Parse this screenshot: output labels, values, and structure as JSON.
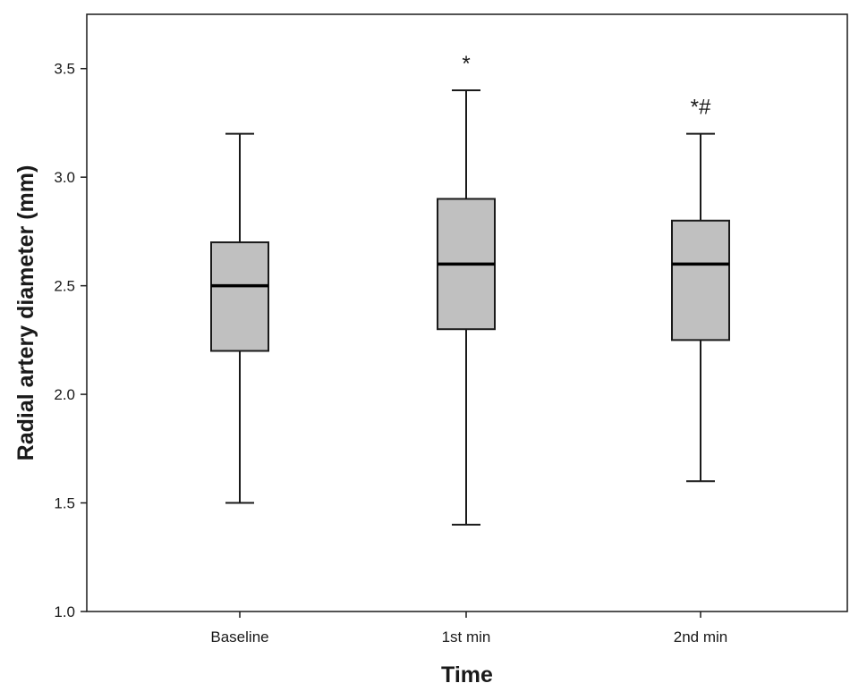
{
  "chart_data": {
    "type": "box",
    "title": "",
    "xlabel": "Time",
    "ylabel": "Radial artery diameter (mm)",
    "ylim": [
      1.0,
      3.75
    ],
    "yticks": [
      1.0,
      1.5,
      2.0,
      2.5,
      3.0,
      3.5
    ],
    "ytick_labels": [
      "1.0",
      "1.5",
      "2.0",
      "2.5",
      "3.0",
      "3.5"
    ],
    "categories": [
      "Baseline",
      "1st min",
      "2nd min"
    ],
    "boxes": [
      {
        "category": "Baseline",
        "min": 1.5,
        "q1": 2.2,
        "median": 2.5,
        "q3": 2.7,
        "max": 3.2,
        "annotation": ""
      },
      {
        "category": "1st min",
        "min": 1.4,
        "q1": 2.3,
        "median": 2.6,
        "q3": 2.9,
        "max": 3.4,
        "annotation": "*"
      },
      {
        "category": "2nd min",
        "min": 1.6,
        "q1": 2.25,
        "median": 2.6,
        "q3": 2.8,
        "max": 3.2,
        "annotation": "*#"
      }
    ],
    "box_fill": "#c0c0c0",
    "line_color": "#1a1a1a",
    "grid": false,
    "legend": "none"
  }
}
